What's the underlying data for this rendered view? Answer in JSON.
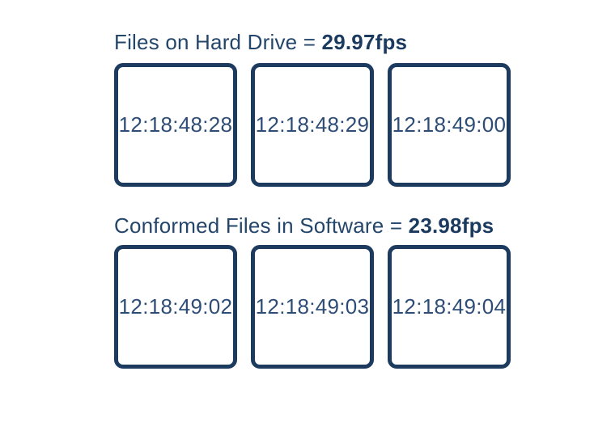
{
  "colors": {
    "accent_navy": "#1d3a5f",
    "timecode_text": "#2d4d77",
    "title_text": "#24466b"
  },
  "rows": [
    {
      "label_prefix": "Files on Hard Drive = ",
      "label_value": "29.97fps",
      "boxes": [
        "12:18:48:28",
        "12:18:48:29",
        "12:18:49:00"
      ]
    },
    {
      "label_prefix": "Conformed Files in Software = ",
      "label_value": "23.98fps",
      "boxes": [
        "12:18:49:02",
        "12:18:49:03",
        "12:18:49:04"
      ]
    }
  ]
}
